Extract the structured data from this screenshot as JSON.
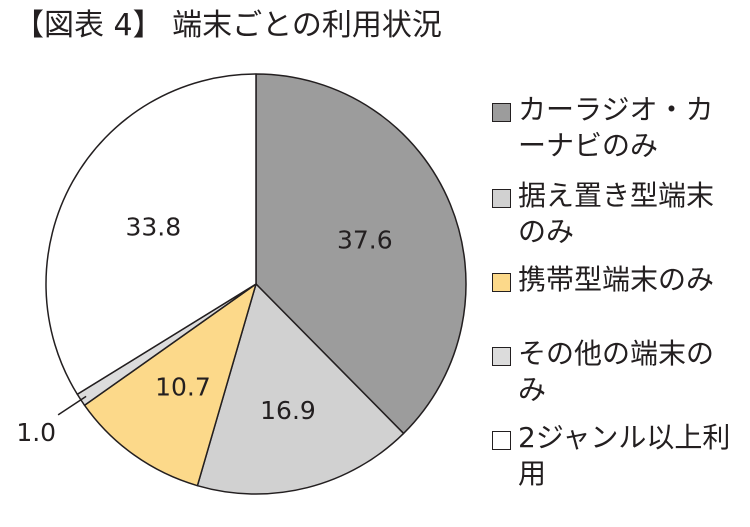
{
  "title": "【図表 4】 端末ごとの利用状況",
  "chart_data": {
    "type": "pie",
    "title": "【図表 4】 端末ごとの利用状況",
    "slices": [
      {
        "label": "カーラジオ・カーナビのみ",
        "value": 37.6,
        "value_label": "37.6",
        "color": "#9c9c9c"
      },
      {
        "label": "据え置き型端末のみ",
        "value": 16.9,
        "value_label": "16.9",
        "color": "#d1d1d1"
      },
      {
        "label": "携帯型端末のみ",
        "value": 10.7,
        "value_label": "10.7",
        "color": "#fcd98a"
      },
      {
        "label": "その他の端末のみ",
        "value": 1.0,
        "value_label": "1.0",
        "color": "#dcdcdc"
      },
      {
        "label": "2ジャンル以上利用",
        "value": 33.8,
        "value_label": "33.8",
        "color": "#ffffff"
      }
    ],
    "start_angle": "12 o'clock",
    "direction": "clockwise",
    "legend_position": "right"
  },
  "legend": [
    {
      "label": "カーラジオ・カーナビのみ",
      "color": "#9c9c9c"
    },
    {
      "label": "据え置き型端末のみ",
      "color": "#d1d1d1"
    },
    {
      "label": "携帯型端末のみ",
      "color": "#fcd98a"
    },
    {
      "label": "その他の端末のみ",
      "color": "#dcdcdc"
    },
    {
      "label": "2ジャンル以上利用",
      "color": "#ffffff"
    }
  ]
}
